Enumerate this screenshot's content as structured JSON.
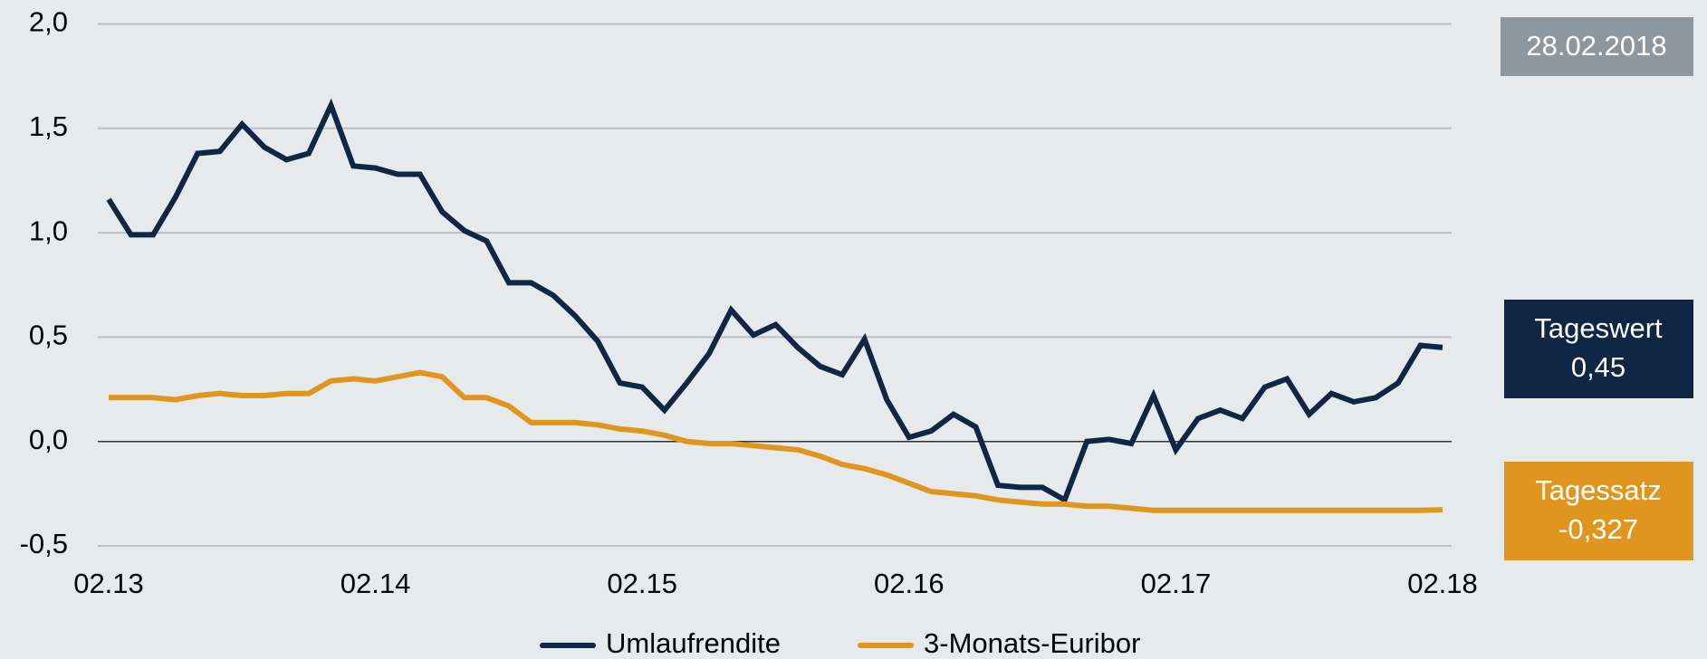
{
  "chart_data": {
    "type": "line",
    "date_label": "28.02.2018",
    "categories": [
      "02.13",
      null,
      null,
      null,
      null,
      null,
      null,
      null,
      null,
      null,
      null,
      null,
      "02.14",
      null,
      null,
      null,
      null,
      null,
      null,
      null,
      null,
      null,
      null,
      null,
      "02.15",
      null,
      null,
      null,
      null,
      null,
      null,
      null,
      null,
      null,
      null,
      null,
      "02.16",
      null,
      null,
      null,
      null,
      null,
      null,
      null,
      null,
      null,
      null,
      null,
      "02.17",
      null,
      null,
      null,
      null,
      null,
      null,
      null,
      null,
      null,
      null,
      null,
      "02.18"
    ],
    "series": [
      {
        "name": "Umlaufrendite",
        "color": "#0f2645",
        "badge": {
          "title": "Tageswert",
          "label": "0,45"
        },
        "values": [
          1.16,
          0.99,
          0.99,
          1.17,
          1.38,
          1.39,
          1.52,
          1.41,
          1.35,
          1.38,
          1.61,
          1.32,
          1.31,
          1.28,
          1.28,
          1.1,
          1.01,
          0.96,
          0.76,
          0.76,
          0.7,
          0.6,
          0.48,
          0.28,
          0.26,
          0.15,
          0.28,
          0.42,
          0.63,
          0.51,
          0.56,
          0.45,
          0.36,
          0.32,
          0.49,
          0.2,
          0.02,
          0.05,
          0.13,
          0.07,
          -0.21,
          -0.22,
          -0.22,
          -0.28,
          0.0,
          0.01,
          -0.01,
          0.22,
          -0.04,
          0.11,
          0.15,
          0.11,
          0.26,
          0.3,
          0.13,
          0.23,
          0.19,
          0.21,
          0.28,
          0.46,
          0.45
        ]
      },
      {
        "name": "3-Monats-Euribor",
        "color": "#e0961e",
        "badge": {
          "title": "Tagessatz",
          "label": "-0,327"
        },
        "values": [
          0.21,
          0.21,
          0.21,
          0.2,
          0.22,
          0.23,
          0.22,
          0.22,
          0.23,
          0.23,
          0.29,
          0.3,
          0.29,
          0.31,
          0.33,
          0.31,
          0.21,
          0.21,
          0.17,
          0.09,
          0.09,
          0.09,
          0.08,
          0.06,
          0.05,
          0.03,
          0.0,
          -0.01,
          -0.01,
          -0.02,
          -0.03,
          -0.04,
          -0.07,
          -0.11,
          -0.13,
          -0.16,
          -0.2,
          -0.24,
          -0.25,
          -0.26,
          -0.28,
          -0.29,
          -0.3,
          -0.3,
          -0.31,
          -0.31,
          -0.32,
          -0.33,
          -0.33,
          -0.33,
          -0.33,
          -0.33,
          -0.33,
          -0.33,
          -0.33,
          -0.33,
          -0.33,
          -0.33,
          -0.33,
          -0.33,
          -0.327
        ]
      }
    ],
    "ylim": [
      -0.5,
      2.0
    ],
    "yticks": [
      {
        "value": -0.5,
        "label": "-0,5"
      },
      {
        "value": 0,
        "label": "0,0"
      },
      {
        "value": 0.5,
        "label": "0,5"
      },
      {
        "value": 1,
        "label": "1,0"
      },
      {
        "value": 1.5,
        "label": "1,5"
      },
      {
        "value": 2,
        "label": "2,0"
      }
    ],
    "grid": true
  }
}
